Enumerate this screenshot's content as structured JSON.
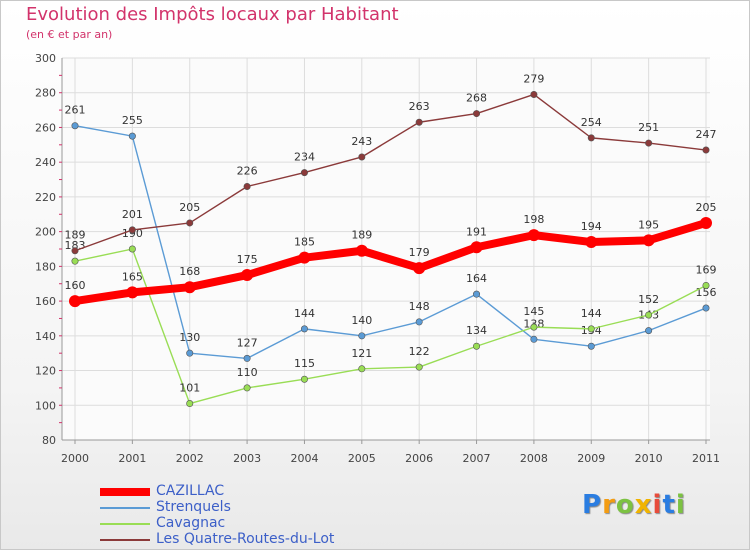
{
  "chart_data": {
    "type": "line",
    "title": "Evolution des Impôts locaux par Habitant",
    "subtitle": "(en € et par an)",
    "xlabel": "",
    "ylabel": "",
    "categories": [
      "2000",
      "2001",
      "2002",
      "2003",
      "2004",
      "2005",
      "2006",
      "2007",
      "2008",
      "2009",
      "2010",
      "2011"
    ],
    "ylim": [
      80,
      300
    ],
    "yticks": [
      80,
      100,
      120,
      140,
      160,
      180,
      200,
      220,
      240,
      260,
      280,
      300
    ],
    "grid": true,
    "legend_position": "bottom-left",
    "series": [
      {
        "name": "CAZILLAC",
        "color": "#ff0000",
        "values": [
          160,
          165,
          168,
          175,
          185,
          189,
          179,
          191,
          198,
          194,
          195,
          205
        ]
      },
      {
        "name": "Strenquels",
        "color": "#5b9bd5",
        "values": [
          261,
          255,
          130,
          127,
          144,
          140,
          148,
          164,
          138,
          134,
          143,
          156
        ]
      },
      {
        "name": "Cavagnac",
        "color": "#99dd55",
        "values": [
          183,
          190,
          101,
          110,
          115,
          121,
          122,
          134,
          145,
          144,
          152,
          169
        ]
      },
      {
        "name": "Les Quatre-Routes-du-Lot",
        "color": "#8b3a3a",
        "values": [
          189,
          201,
          205,
          226,
          234,
          243,
          263,
          268,
          279,
          254,
          251,
          247
        ]
      }
    ]
  },
  "logo": {
    "letters": [
      "P",
      "r",
      "o",
      "x",
      "i",
      "t",
      "i"
    ],
    "colors": [
      "#2a7de1",
      "#f39c12",
      "#7cc242",
      "#f0b400",
      "#e74c3c",
      "#2a7de1",
      "#7cc242"
    ]
  }
}
